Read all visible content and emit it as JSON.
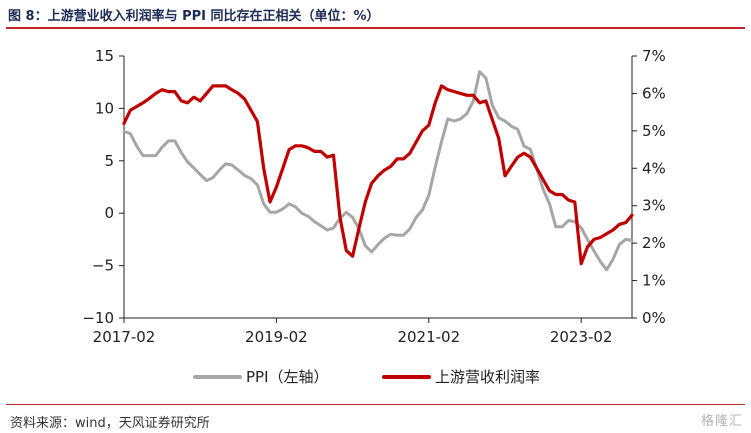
{
  "header": {
    "title": "图 8：上游营业收入利润率与 PPI 同比存在正相关（单位：%）"
  },
  "footer": {
    "source": "资料来源：wind，天风证券研究所",
    "watermark": "格隆汇"
  },
  "colors": {
    "ppi": "#a6a6a6",
    "margin": "#c00000",
    "accent": "#c1262c"
  },
  "chart_data": {
    "type": "line",
    "title": "",
    "x_ticks": [
      "2017-02",
      "2019-02",
      "2021-02",
      "2023-02"
    ],
    "x_range": [
      "2017-02",
      "2023-10"
    ],
    "y_left": {
      "ticks": [
        "15",
        "10",
        "5",
        "0",
        "−5",
        "−10"
      ],
      "range": [
        -10,
        15
      ]
    },
    "y_right": {
      "ticks": [
        "7%",
        "6%",
        "5%",
        "4%",
        "3%",
        "2%",
        "1%",
        "0%"
      ],
      "range": [
        0,
        7
      ]
    },
    "grid": false,
    "legend": {
      "position": "bottom"
    },
    "series": [
      {
        "name": "PPI（左轴）",
        "axis": "left",
        "points": [
          [
            "2017-02",
            7.8
          ],
          [
            "2017-03",
            7.6
          ],
          [
            "2017-04",
            6.4
          ],
          [
            "2017-05",
            5.5
          ],
          [
            "2017-06",
            5.5
          ],
          [
            "2017-07",
            5.5
          ],
          [
            "2017-08",
            6.3
          ],
          [
            "2017-09",
            6.9
          ],
          [
            "2017-10",
            6.9
          ],
          [
            "2017-11",
            5.8
          ],
          [
            "2017-12",
            4.9
          ],
          [
            "2018-01",
            4.3
          ],
          [
            "2018-02",
            3.7
          ],
          [
            "2018-03",
            3.1
          ],
          [
            "2018-04",
            3.4
          ],
          [
            "2018-05",
            4.1
          ],
          [
            "2018-06",
            4.7
          ],
          [
            "2018-07",
            4.6
          ],
          [
            "2018-08",
            4.1
          ],
          [
            "2018-09",
            3.6
          ],
          [
            "2018-10",
            3.3
          ],
          [
            "2018-11",
            2.7
          ],
          [
            "2018-12",
            0.9
          ],
          [
            "2019-01",
            0.1
          ],
          [
            "2019-02",
            0.1
          ],
          [
            "2019-03",
            0.4
          ],
          [
            "2019-04",
            0.9
          ],
          [
            "2019-05",
            0.6
          ],
          [
            "2019-06",
            0.0
          ],
          [
            "2019-07",
            -0.3
          ],
          [
            "2019-08",
            -0.8
          ],
          [
            "2019-09",
            -1.2
          ],
          [
            "2019-10",
            -1.6
          ],
          [
            "2019-11",
            -1.4
          ],
          [
            "2019-12",
            -0.5
          ],
          [
            "2020-01",
            0.1
          ],
          [
            "2020-02",
            -0.4
          ],
          [
            "2020-03",
            -1.5
          ],
          [
            "2020-04",
            -3.1
          ],
          [
            "2020-05",
            -3.7
          ],
          [
            "2020-06",
            -3.0
          ],
          [
            "2020-07",
            -2.4
          ],
          [
            "2020-08",
            -2.0
          ],
          [
            "2020-09",
            -2.1
          ],
          [
            "2020-10",
            -2.1
          ],
          [
            "2020-11",
            -1.5
          ],
          [
            "2020-12",
            -0.4
          ],
          [
            "2021-01",
            0.3
          ],
          [
            "2021-02",
            1.7
          ],
          [
            "2021-03",
            4.4
          ],
          [
            "2021-04",
            6.8
          ],
          [
            "2021-05",
            9.0
          ],
          [
            "2021-06",
            8.8
          ],
          [
            "2021-07",
            9.0
          ],
          [
            "2021-08",
            9.5
          ],
          [
            "2021-09",
            10.7
          ],
          [
            "2021-10",
            13.5
          ],
          [
            "2021-11",
            12.9
          ],
          [
            "2021-12",
            10.3
          ],
          [
            "2022-01",
            9.1
          ],
          [
            "2022-02",
            8.8
          ],
          [
            "2022-03",
            8.3
          ],
          [
            "2022-04",
            8.0
          ],
          [
            "2022-05",
            6.4
          ],
          [
            "2022-06",
            6.1
          ],
          [
            "2022-07",
            4.2
          ],
          [
            "2022-08",
            2.3
          ],
          [
            "2022-09",
            0.9
          ],
          [
            "2022-10",
            -1.3
          ],
          [
            "2022-11",
            -1.3
          ],
          [
            "2022-12",
            -0.7
          ],
          [
            "2023-01",
            -0.8
          ],
          [
            "2023-02",
            -1.4
          ],
          [
            "2023-03",
            -2.5
          ],
          [
            "2023-04",
            -3.6
          ],
          [
            "2023-05",
            -4.6
          ],
          [
            "2023-06",
            -5.4
          ],
          [
            "2023-07",
            -4.4
          ],
          [
            "2023-08",
            -3.0
          ],
          [
            "2023-09",
            -2.5
          ],
          [
            "2023-10",
            -2.6
          ]
        ]
      },
      {
        "name": "上游营收利润率",
        "axis": "right",
        "points": [
          [
            "2017-02",
            5.2
          ],
          [
            "2017-03",
            5.55
          ],
          [
            "2017-04",
            5.65
          ],
          [
            "2017-05",
            5.75
          ],
          [
            "2017-06",
            5.87
          ],
          [
            "2017-07",
            6.0
          ],
          [
            "2017-08",
            6.1
          ],
          [
            "2017-09",
            6.05
          ],
          [
            "2017-10",
            6.05
          ],
          [
            "2017-11",
            5.8
          ],
          [
            "2017-12",
            5.75
          ],
          [
            "2018-01",
            5.9
          ],
          [
            "2018-02",
            5.8
          ],
          [
            "2018-03",
            6.0
          ],
          [
            "2018-04",
            6.2
          ],
          [
            "2018-05",
            6.2
          ],
          [
            "2018-06",
            6.2
          ],
          [
            "2018-07",
            6.1
          ],
          [
            "2018-08",
            6.0
          ],
          [
            "2018-09",
            5.85
          ],
          [
            "2018-10",
            5.55
          ],
          [
            "2018-11",
            5.25
          ],
          [
            "2018-12",
            4.0
          ],
          [
            "2019-01",
            3.1
          ],
          [
            "2019-02",
            3.5
          ],
          [
            "2019-03",
            4.0
          ],
          [
            "2019-04",
            4.5
          ],
          [
            "2019-05",
            4.6
          ],
          [
            "2019-06",
            4.6
          ],
          [
            "2019-07",
            4.55
          ],
          [
            "2019-08",
            4.45
          ],
          [
            "2019-09",
            4.45
          ],
          [
            "2019-10",
            4.3
          ],
          [
            "2019-11",
            4.35
          ],
          [
            "2019-12",
            2.7
          ],
          [
            "2020-01",
            1.8
          ],
          [
            "2020-02",
            1.65
          ],
          [
            "2020-03",
            2.4
          ],
          [
            "2020-04",
            3.1
          ],
          [
            "2020-05",
            3.6
          ],
          [
            "2020-06",
            3.8
          ],
          [
            "2020-07",
            3.95
          ],
          [
            "2020-08",
            4.05
          ],
          [
            "2020-09",
            4.25
          ],
          [
            "2020-10",
            4.25
          ],
          [
            "2020-11",
            4.4
          ],
          [
            "2020-12",
            4.7
          ],
          [
            "2021-01",
            5.0
          ],
          [
            "2021-02",
            5.15
          ],
          [
            "2021-03",
            5.75
          ],
          [
            "2021-04",
            6.2
          ],
          [
            "2021-05",
            6.1
          ],
          [
            "2021-06",
            6.05
          ],
          [
            "2021-07",
            6.0
          ],
          [
            "2021-08",
            5.95
          ],
          [
            "2021-09",
            5.95
          ],
          [
            "2021-10",
            5.75
          ],
          [
            "2021-11",
            5.8
          ],
          [
            "2021-12",
            5.3
          ],
          [
            "2022-01",
            4.8
          ],
          [
            "2022-02",
            3.8
          ],
          [
            "2022-03",
            4.05
          ],
          [
            "2022-04",
            4.3
          ],
          [
            "2022-05",
            4.4
          ],
          [
            "2022-06",
            4.3
          ],
          [
            "2022-07",
            4.0
          ],
          [
            "2022-08",
            3.7
          ],
          [
            "2022-09",
            3.4
          ],
          [
            "2022-10",
            3.3
          ],
          [
            "2022-11",
            3.3
          ],
          [
            "2022-12",
            3.15
          ],
          [
            "2023-01",
            3.1
          ],
          [
            "2023-02",
            1.45
          ],
          [
            "2023-03",
            1.9
          ],
          [
            "2023-04",
            2.1
          ],
          [
            "2023-05",
            2.15
          ],
          [
            "2023-06",
            2.25
          ],
          [
            "2023-07",
            2.35
          ],
          [
            "2023-08",
            2.5
          ],
          [
            "2023-09",
            2.55
          ],
          [
            "2023-10",
            2.75
          ]
        ]
      }
    ]
  }
}
